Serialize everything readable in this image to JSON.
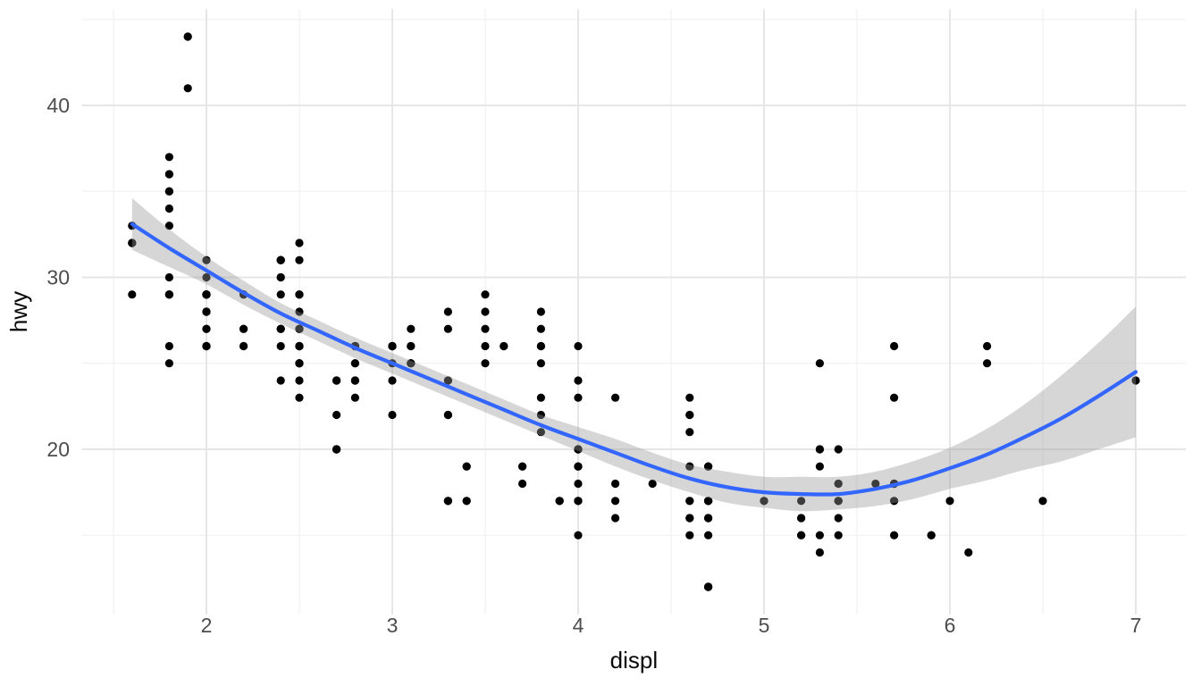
{
  "figure": {
    "background": "#FFFFFF"
  },
  "chart_data": {
    "type": "scatter",
    "title": "",
    "xlabel": "displ",
    "ylabel": "hwy",
    "xlim": [
      1.33,
      7.27
    ],
    "ylim": [
      10.4,
      45.6
    ],
    "x_ticks": [
      2,
      3,
      4,
      5,
      6,
      7
    ],
    "y_ticks": [
      20,
      30,
      40
    ],
    "x_minor_gridlines": [
      1.5,
      2.5,
      3.5,
      4.5,
      5.5,
      6.5
    ],
    "y_minor_gridlines": [
      15,
      25,
      35,
      45
    ],
    "grid": true,
    "legend": "none",
    "colors": {
      "point": "#000000",
      "smooth_line": "#3366FF",
      "ribbon": "#999999",
      "ribbon_opacity": 0.4,
      "grid_major": "#E6E6E6",
      "grid_minor": "#F0F0F0",
      "tick_label": "#4D4D4D",
      "axis_title": "#0A0A0A",
      "background": "#FFFFFF"
    },
    "points": [
      [
        1.8,
        29
      ],
      [
        1.8,
        29
      ],
      [
        2.0,
        31
      ],
      [
        2.0,
        30
      ],
      [
        2.8,
        26
      ],
      [
        2.8,
        26
      ],
      [
        3.1,
        27
      ],
      [
        1.8,
        26
      ],
      [
        1.8,
        25
      ],
      [
        2.0,
        28
      ],
      [
        2.0,
        27
      ],
      [
        2.8,
        25
      ],
      [
        2.8,
        25
      ],
      [
        3.1,
        25
      ],
      [
        3.1,
        25
      ],
      [
        2.8,
        24
      ],
      [
        3.1,
        25
      ],
      [
        4.2,
        23
      ],
      [
        5.3,
        20
      ],
      [
        5.3,
        15
      ],
      [
        5.3,
        20
      ],
      [
        5.7,
        17
      ],
      [
        6.0,
        17
      ],
      [
        5.7,
        26
      ],
      [
        5.7,
        23
      ],
      [
        6.2,
        26
      ],
      [
        6.2,
        25
      ],
      [
        7.0,
        24
      ],
      [
        5.3,
        19
      ],
      [
        5.3,
        14
      ],
      [
        5.7,
        15
      ],
      [
        6.5,
        17
      ],
      [
        2.4,
        27
      ],
      [
        2.4,
        30
      ],
      [
        3.1,
        26
      ],
      [
        3.5,
        29
      ],
      [
        3.6,
        26
      ],
      [
        2.4,
        24
      ],
      [
        3.0,
        24
      ],
      [
        3.3,
        22
      ],
      [
        3.3,
        22
      ],
      [
        3.3,
        24
      ],
      [
        3.3,
        24
      ],
      [
        3.3,
        17
      ],
      [
        3.8,
        22
      ],
      [
        3.8,
        21
      ],
      [
        3.8,
        23
      ],
      [
        4.0,
        23
      ],
      [
        3.7,
        19
      ],
      [
        3.7,
        18
      ],
      [
        3.9,
        17
      ],
      [
        3.9,
        17
      ],
      [
        4.7,
        19
      ],
      [
        4.7,
        19
      ],
      [
        4.7,
        12
      ],
      [
        5.2,
        17
      ],
      [
        5.2,
        15
      ],
      [
        3.9,
        17
      ],
      [
        4.7,
        17
      ],
      [
        4.7,
        12
      ],
      [
        4.7,
        16
      ],
      [
        5.2,
        16
      ],
      [
        5.7,
        18
      ],
      [
        5.9,
        15
      ],
      [
        4.7,
        16
      ],
      [
        4.7,
        12
      ],
      [
        4.7,
        17
      ],
      [
        4.7,
        17
      ],
      [
        4.7,
        16
      ],
      [
        4.7,
        12
      ],
      [
        5.2,
        15
      ],
      [
        5.2,
        16
      ],
      [
        5.7,
        17
      ],
      [
        5.9,
        15
      ],
      [
        4.6,
        17
      ],
      [
        5.4,
        17
      ],
      [
        5.4,
        18
      ],
      [
        4.0,
        17
      ],
      [
        4.0,
        19
      ],
      [
        4.0,
        17
      ],
      [
        4.0,
        19
      ],
      [
        4.6,
        19
      ],
      [
        5.0,
        17
      ],
      [
        4.2,
        16
      ],
      [
        4.2,
        17
      ],
      [
        4.6,
        16
      ],
      [
        4.6,
        16
      ],
      [
        4.6,
        17
      ],
      [
        5.4,
        15
      ],
      [
        5.4,
        17
      ],
      [
        3.8,
        26
      ],
      [
        3.8,
        25
      ],
      [
        4.0,
        26
      ],
      [
        4.0,
        24
      ],
      [
        4.6,
        21
      ],
      [
        4.6,
        22
      ],
      [
        4.6,
        23
      ],
      [
        4.6,
        22
      ],
      [
        5.4,
        20
      ],
      [
        1.6,
        33
      ],
      [
        1.6,
        32
      ],
      [
        1.6,
        32
      ],
      [
        1.6,
        29
      ],
      [
        1.6,
        32
      ],
      [
        1.8,
        34
      ],
      [
        1.8,
        36
      ],
      [
        1.8,
        36
      ],
      [
        2.0,
        29
      ],
      [
        2.4,
        26
      ],
      [
        2.4,
        27
      ],
      [
        2.4,
        30
      ],
      [
        2.4,
        31
      ],
      [
        2.5,
        26
      ],
      [
        2.5,
        26
      ],
      [
        3.3,
        28
      ],
      [
        2.0,
        26
      ],
      [
        2.0,
        29
      ],
      [
        2.0,
        28
      ],
      [
        2.0,
        27
      ],
      [
        2.7,
        24
      ],
      [
        2.7,
        24
      ],
      [
        2.7,
        24
      ],
      [
        3.0,
        22
      ],
      [
        3.7,
        19
      ],
      [
        4.0,
        20
      ],
      [
        4.7,
        17
      ],
      [
        4.7,
        12
      ],
      [
        4.7,
        19
      ],
      [
        5.7,
        18
      ],
      [
        6.1,
        14
      ],
      [
        4.0,
        15
      ],
      [
        4.2,
        18
      ],
      [
        4.4,
        18
      ],
      [
        4.6,
        15
      ],
      [
        5.4,
        17
      ],
      [
        5.4,
        16
      ],
      [
        5.4,
        18
      ],
      [
        4.0,
        17
      ],
      [
        4.0,
        19
      ],
      [
        4.6,
        19
      ],
      [
        5.0,
        17
      ],
      [
        2.4,
        29
      ],
      [
        2.4,
        27
      ],
      [
        2.5,
        31
      ],
      [
        2.5,
        32
      ],
      [
        3.5,
        27
      ],
      [
        3.5,
        26
      ],
      [
        3.0,
        26
      ],
      [
        3.0,
        25
      ],
      [
        3.5,
        25
      ],
      [
        3.3,
        17
      ],
      [
        3.3,
        17
      ],
      [
        4.0,
        20
      ],
      [
        5.6,
        18
      ],
      [
        3.1,
        26
      ],
      [
        3.8,
        26
      ],
      [
        3.8,
        27
      ],
      [
        3.8,
        28
      ],
      [
        5.3,
        25
      ],
      [
        2.5,
        25
      ],
      [
        2.5,
        24
      ],
      [
        2.5,
        27
      ],
      [
        2.5,
        25
      ],
      [
        2.5,
        26
      ],
      [
        2.5,
        23
      ],
      [
        2.2,
        26
      ],
      [
        2.2,
        26
      ],
      [
        2.5,
        26
      ],
      [
        2.5,
        26
      ],
      [
        2.5,
        25
      ],
      [
        2.5,
        27
      ],
      [
        2.5,
        25
      ],
      [
        2.5,
        27
      ],
      [
        2.7,
        20
      ],
      [
        2.7,
        20
      ],
      [
        3.4,
        19
      ],
      [
        3.4,
        17
      ],
      [
        4.0,
        20
      ],
      [
        4.7,
        17
      ],
      [
        2.2,
        29
      ],
      [
        2.2,
        27
      ],
      [
        2.4,
        31
      ],
      [
        2.4,
        31
      ],
      [
        3.0,
        26
      ],
      [
        3.0,
        26
      ],
      [
        3.5,
        28
      ],
      [
        2.2,
        27
      ],
      [
        2.2,
        29
      ],
      [
        2.4,
        31
      ],
      [
        2.4,
        31
      ],
      [
        3.0,
        26
      ],
      [
        3.0,
        26
      ],
      [
        3.3,
        27
      ],
      [
        1.8,
        30
      ],
      [
        1.8,
        33
      ],
      [
        1.8,
        35
      ],
      [
        1.8,
        37
      ],
      [
        1.8,
        35
      ],
      [
        4.7,
        15
      ],
      [
        5.7,
        18
      ],
      [
        2.7,
        20
      ],
      [
        2.7,
        20
      ],
      [
        2.7,
        22
      ],
      [
        3.4,
        17
      ],
      [
        3.4,
        19
      ],
      [
        4.0,
        18
      ],
      [
        4.0,
        20
      ],
      [
        2.0,
        29
      ],
      [
        2.0,
        26
      ],
      [
        2.0,
        29
      ],
      [
        2.0,
        29
      ],
      [
        2.8,
        24
      ],
      [
        1.9,
        44
      ],
      [
        2.0,
        29
      ],
      [
        2.0,
        26
      ],
      [
        2.0,
        29
      ],
      [
        2.0,
        29
      ],
      [
        2.5,
        29
      ],
      [
        2.5,
        29
      ],
      [
        2.8,
        23
      ],
      [
        2.8,
        24
      ],
      [
        1.9,
        44
      ],
      [
        1.9,
        41
      ],
      [
        2.0,
        29
      ],
      [
        2.0,
        26
      ],
      [
        2.5,
        28
      ],
      [
        2.5,
        29
      ],
      [
        1.8,
        29
      ],
      [
        1.8,
        29
      ],
      [
        2.0,
        28
      ],
      [
        2.0,
        29
      ],
      [
        2.8,
        26
      ],
      [
        2.8,
        26
      ],
      [
        3.6,
        26
      ]
    ],
    "smooth": {
      "method": "loess",
      "x": [
        1.6,
        1.8,
        2.0,
        2.2,
        2.4,
        2.6,
        2.8,
        3.0,
        3.2,
        3.4,
        3.6,
        3.8,
        4.0,
        4.2,
        4.4,
        4.6,
        4.8,
        5.0,
        5.2,
        5.4,
        5.6,
        5.8,
        6.0,
        6.2,
        6.4,
        6.6,
        6.8,
        7.0
      ],
      "fit": [
        33.1,
        31.7,
        30.4,
        29.1,
        27.9,
        26.9,
        25.9,
        25.0,
        24.1,
        23.2,
        22.3,
        21.4,
        20.6,
        19.8,
        19.0,
        18.3,
        17.8,
        17.5,
        17.4,
        17.4,
        17.7,
        18.2,
        18.9,
        19.7,
        20.7,
        21.8,
        23.1,
        24.5
      ],
      "ci_low": [
        31.6,
        30.6,
        29.6,
        28.4,
        27.3,
        26.3,
        25.3,
        24.4,
        23.5,
        22.6,
        21.7,
        20.8,
        19.9,
        19.0,
        18.2,
        17.5,
        16.9,
        16.6,
        16.4,
        16.5,
        16.7,
        17.1,
        17.7,
        18.2,
        18.8,
        19.3,
        20.0,
        20.7
      ],
      "ci_high": [
        34.6,
        32.8,
        31.2,
        29.8,
        28.5,
        27.5,
        26.5,
        25.6,
        24.7,
        23.8,
        22.9,
        22.0,
        21.3,
        20.6,
        19.8,
        19.1,
        18.7,
        18.4,
        18.4,
        18.4,
        18.7,
        19.3,
        20.1,
        21.2,
        22.6,
        24.3,
        26.2,
        28.3
      ]
    }
  }
}
